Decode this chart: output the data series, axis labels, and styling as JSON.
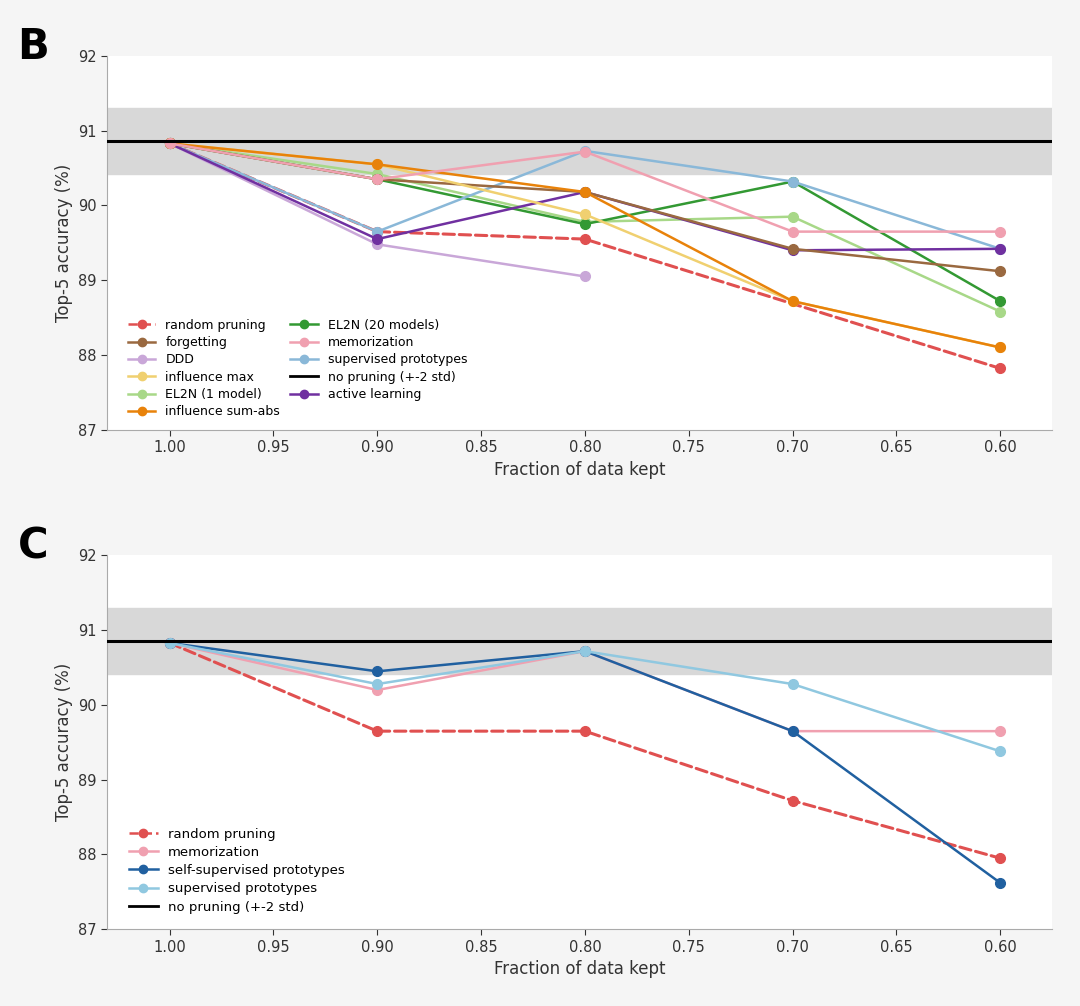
{
  "x": [
    1.0,
    0.9,
    0.8,
    0.7,
    0.6
  ],
  "panel_B": {
    "no_pruning_mean": 90.86,
    "no_pruning_std_upper": 91.3,
    "no_pruning_std_lower": 90.42,
    "series": {
      "random_pruning": {
        "values": [
          90.83,
          89.65,
          89.55,
          null,
          87.82
        ],
        "color": "#e05050",
        "style": "dashed",
        "marker": "o",
        "label": "random pruning"
      },
      "DDD": {
        "values": [
          90.83,
          89.48,
          89.05,
          null,
          null
        ],
        "color": "#c9a7d8",
        "style": "solid",
        "marker": "o",
        "label": "DDD"
      },
      "EL2N_1model": {
        "values": [
          90.83,
          90.42,
          89.78,
          89.85,
          88.58
        ],
        "color": "#a8d888",
        "style": "solid",
        "marker": "o",
        "label": "EL2N (1 model)"
      },
      "EL2N_20models": {
        "values": [
          90.83,
          90.35,
          89.75,
          90.32,
          88.72
        ],
        "color": "#339933",
        "style": "solid",
        "marker": "o",
        "label": "EL2N (20 models)"
      },
      "supervised_prototypes": {
        "values": [
          90.83,
          89.65,
          90.73,
          90.32,
          89.42
        ],
        "color": "#8ab8d8",
        "style": "solid",
        "marker": "o",
        "label": "supervised prototypes"
      },
      "active_learning": {
        "values": [
          90.83,
          89.55,
          90.18,
          89.4,
          89.42
        ],
        "color": "#7030a0",
        "style": "solid",
        "marker": "o",
        "label": "active learning"
      },
      "forgetting": {
        "values": [
          90.83,
          90.35,
          90.18,
          89.42,
          89.12
        ],
        "color": "#9a6940",
        "style": "solid",
        "marker": "o",
        "label": "forgetting"
      },
      "influence_max": {
        "values": [
          90.83,
          90.55,
          89.88,
          88.72,
          88.1
        ],
        "color": "#f0d070",
        "style": "solid",
        "marker": "o",
        "label": "influence max"
      },
      "influence_sum_abs": {
        "values": [
          90.83,
          90.55,
          90.18,
          88.72,
          88.1
        ],
        "color": "#e8820a",
        "style": "solid",
        "marker": "o",
        "label": "influence sum-abs"
      },
      "memorization": {
        "values": [
          90.83,
          90.35,
          90.72,
          89.65,
          89.65
        ],
        "color": "#f0a0b0",
        "style": "solid",
        "marker": "o",
        "label": "memorization"
      }
    }
  },
  "panel_C": {
    "no_pruning_mean": 90.86,
    "no_pruning_std_upper": 91.3,
    "no_pruning_std_lower": 90.42,
    "series": {
      "random_pruning": {
        "values": [
          90.83,
          89.65,
          89.65,
          88.72,
          87.95
        ],
        "color": "#e05050",
        "style": "dashed",
        "marker": "o",
        "label": "random pruning"
      },
      "memorization": {
        "values": [
          90.83,
          90.2,
          90.72,
          89.65,
          89.65
        ],
        "color": "#f0a0b0",
        "style": "solid",
        "marker": "o",
        "label": "memorization"
      },
      "self_supervised_prototypes": {
        "values": [
          90.83,
          90.45,
          90.72,
          89.65,
          87.62
        ],
        "color": "#2060a0",
        "style": "solid",
        "marker": "o",
        "label": "self-supervised prototypes"
      },
      "supervised_prototypes": {
        "values": [
          90.83,
          90.28,
          90.72,
          90.28,
          89.38
        ],
        "color": "#90c8e0",
        "style": "solid",
        "marker": "o",
        "label": "supervised prototypes"
      }
    }
  },
  "xlabel": "Fraction of data kept",
  "ylabel": "Top-5 accuracy (%)",
  "ylim": [
    87.0,
    92.0
  ],
  "xticks": [
    1.0,
    0.95,
    0.9,
    0.85,
    0.8,
    0.75,
    0.7,
    0.65,
    0.6
  ],
  "yticks": [
    87,
    88,
    89,
    90,
    91,
    92
  ],
  "bg_color": "#f5f5f5",
  "plot_bg_color": "#ffffff",
  "shade_color": "#d8d8d8"
}
